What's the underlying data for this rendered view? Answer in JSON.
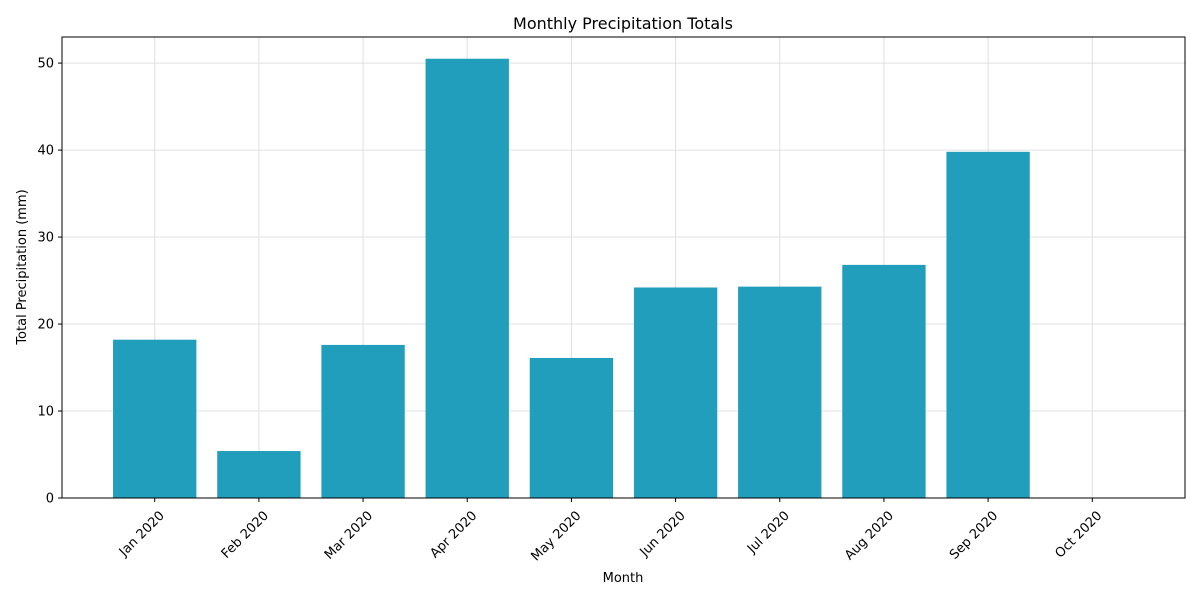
{
  "chart_data": {
    "type": "bar",
    "title": "Monthly Precipitation Totals",
    "xlabel": "Month",
    "ylabel": "Total Precipitation (mm)",
    "categories": [
      "Jan 2020",
      "Feb 2020",
      "Mar 2020",
      "Apr 2020",
      "May 2020",
      "Jun 2020",
      "Jul 2020",
      "Aug 2020",
      "Sep 2020",
      "Oct 2020"
    ],
    "values": [
      18.2,
      5.4,
      17.6,
      50.5,
      16.1,
      24.2,
      24.3,
      26.8,
      39.8,
      0
    ],
    "ylim": [
      0,
      53
    ],
    "yticks": [
      0,
      10,
      20,
      30,
      40,
      50
    ],
    "grid": true,
    "bar_color": "#219ebc",
    "xtick_rotation": 45
  }
}
